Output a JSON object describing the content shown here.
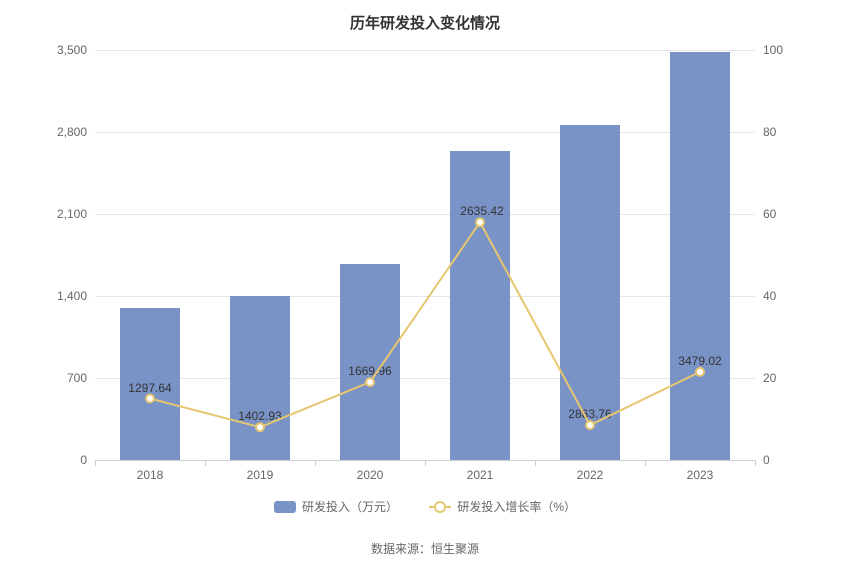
{
  "title": "历年研发投入变化情况",
  "chart": {
    "type": "bar+line",
    "categories": [
      "2018",
      "2019",
      "2020",
      "2021",
      "2022",
      "2023"
    ],
    "bar_series": {
      "name": "研发投入（万元）",
      "values": [
        1297.64,
        1402.93,
        1669.96,
        2635.42,
        2863.76,
        3479.02
      ],
      "color": "#7993c7",
      "bar_width_ratio": 0.54
    },
    "line_series": {
      "name": "研发投入增长率（%）",
      "values": [
        15,
        8,
        19,
        58,
        8.5,
        21.5
      ],
      "color": "#e6c66f",
      "line_width": 2,
      "marker": "circle",
      "marker_size": 8,
      "marker_fill": "#ffffff",
      "marker_stroke": "#e6c66f"
    },
    "y_left": {
      "min": 0,
      "max": 3500,
      "step": 700,
      "ticks": [
        "0",
        "700",
        "1,400",
        "2,100",
        "2,800",
        "3,500"
      ]
    },
    "y_right": {
      "min": 0,
      "max": 100,
      "step": 20,
      "ticks": [
        "0",
        "20",
        "40",
        "60",
        "80",
        "100"
      ]
    },
    "grid_color": "#e6e6e6",
    "axis_color": "#cfcfcf",
    "text_color": "#666666",
    "label_fontsize": 12,
    "title_fontsize": 15,
    "title_color": "#333333",
    "bar_value_color": "#333333",
    "background_color": "#ffffff"
  },
  "legend": {
    "bar_label": "研发投入（万元）",
    "line_label": "研发投入增长率（%）"
  },
  "source_prefix": "数据来源：",
  "source_name": "恒生聚源"
}
